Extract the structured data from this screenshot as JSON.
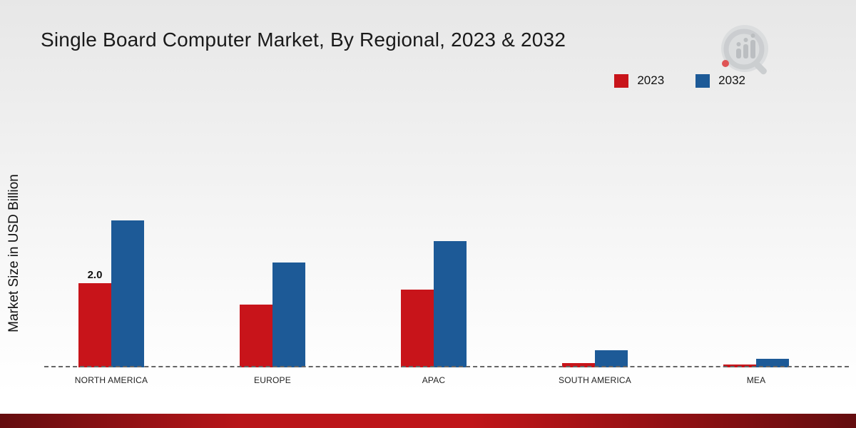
{
  "title": "Single Board Computer Market, By Regional, 2023 & 2032",
  "ylabel": "Market Size in USD Billion",
  "legend": [
    {
      "label": "2023",
      "color": "#c8141a"
    },
    {
      "label": "2032",
      "color": "#1d5a97"
    }
  ],
  "brand": {
    "logo_name": "market-research-logo"
  },
  "chart_data": {
    "type": "bar",
    "title": "Single Board Computer Market, By Regional, 2023 & 2032",
    "xlabel": "",
    "ylabel": "Market Size in USD Billion",
    "categories": [
      "NORTH AMERICA",
      "EUROPE",
      "APAC",
      "SOUTH AMERICA",
      "MEA"
    ],
    "series": [
      {
        "name": "2023",
        "color": "#c8141a",
        "values": [
          2.0,
          1.5,
          1.85,
          0.1,
          0.07
        ],
        "bar_labels": [
          "2.0",
          "",
          "",
          "",
          ""
        ]
      },
      {
        "name": "2032",
        "color": "#1d5a97",
        "values": [
          3.5,
          2.5,
          3.0,
          0.4,
          0.2
        ],
        "bar_labels": [
          "",
          "",
          "",
          "",
          ""
        ]
      }
    ],
    "ylim": [
      0,
      3.6
    ],
    "grid": false,
    "baseline": "dashed",
    "legend_position": "top-right"
  }
}
